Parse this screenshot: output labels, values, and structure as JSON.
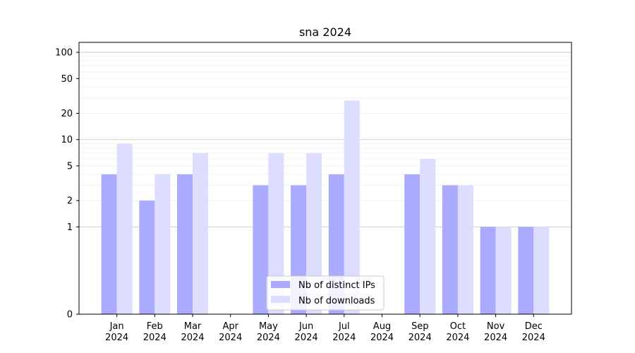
{
  "chart_data": {
    "type": "bar",
    "title": "sna 2024",
    "xlabel": "",
    "ylabel": "",
    "y_scale": "symlog",
    "ylim": [
      0,
      130
    ],
    "yticks": [
      0,
      1,
      2,
      5,
      10,
      20,
      50,
      100
    ],
    "grid": "horizontal",
    "legend_position": "bottom-center",
    "categories": [
      "Jan\n2024",
      "Feb\n2024",
      "Mar\n2024",
      "Apr\n2024",
      "May\n2024",
      "Jun\n2024",
      "Jul\n2024",
      "Aug\n2024",
      "Sep\n2024",
      "Oct\n2024",
      "Nov\n2024",
      "Dec\n2024"
    ],
    "series": [
      {
        "name": "Nb of distinct IPs",
        "color": "#aaaaff",
        "values": [
          4,
          2,
          4,
          0,
          3,
          3,
          4,
          0,
          4,
          3,
          1,
          1
        ]
      },
      {
        "name": "Nb of downloads",
        "color": "#ddddff",
        "values": [
          9,
          4,
          7,
          0,
          7,
          7,
          28,
          0,
          6,
          3,
          1,
          1
        ]
      }
    ]
  }
}
